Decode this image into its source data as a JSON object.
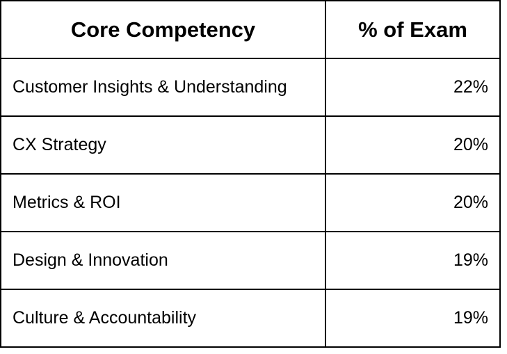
{
  "table": {
    "headers": [
      "Core Competency",
      "% of Exam"
    ],
    "rows": [
      [
        "Customer Insights & Understanding",
        "22%"
      ],
      [
        "CX Strategy",
        "20%"
      ],
      [
        "Metrics & ROI",
        "20%"
      ],
      [
        "Design & Innovation",
        "19%"
      ],
      [
        "Culture & Accountability",
        "19%"
      ]
    ]
  }
}
